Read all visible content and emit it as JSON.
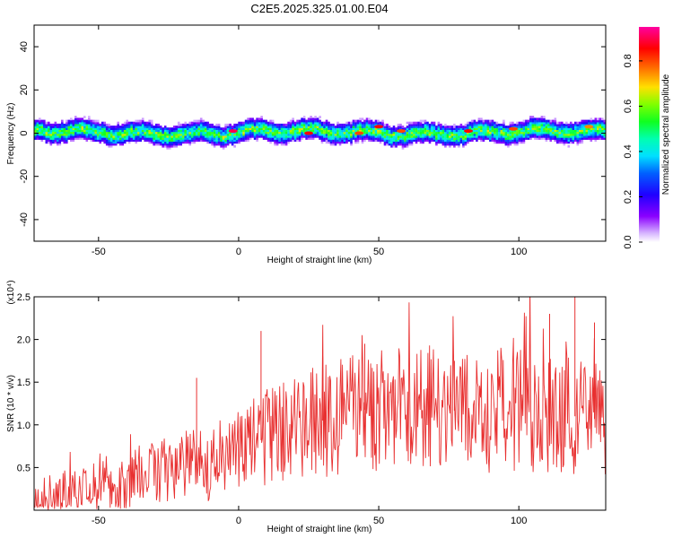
{
  "title": "C2E5.2025.325.01.00.E04",
  "chart_data": [
    {
      "type": "heatmap",
      "name": "spectrogram",
      "xlabel": "Height of straight line (km)",
      "ylabel": "Frequency (Hz)",
      "xlim": [
        -73,
        131
      ],
      "ylim": [
        -50,
        50
      ],
      "xticks": [
        -50,
        0,
        50,
        100
      ],
      "yticks": [
        -40,
        -20,
        0,
        20,
        40
      ],
      "band": {
        "center_hz": 0,
        "half_width_hz": 5,
        "description": "narrow band of high spectral amplitude centered near 0 Hz across the full height range"
      },
      "peak_points": [
        {
          "x": -2,
          "y": 1,
          "value": 0.9
        },
        {
          "x": 25,
          "y": 0,
          "value": 0.85
        },
        {
          "x": 43,
          "y": 0,
          "value": 0.8
        },
        {
          "x": 50,
          "y": 3,
          "value": 0.85
        },
        {
          "x": 58,
          "y": 1,
          "value": 0.8
        },
        {
          "x": 82,
          "y": 1,
          "value": 0.85
        },
        {
          "x": 98,
          "y": 2,
          "value": 0.8
        },
        {
          "x": 125,
          "y": 3,
          "value": 0.75
        }
      ],
      "colorbar": {
        "label": "Normalized spectral amplitude",
        "range": [
          0,
          0.95
        ],
        "ticks": [
          "0.0",
          "0.2",
          "0.4",
          "0.6",
          "0.8"
        ],
        "tick_values": [
          0.0,
          0.2,
          0.4,
          0.6,
          0.8
        ]
      }
    },
    {
      "type": "line",
      "name": "snr",
      "xlabel": "Height of straight line (km)",
      "ylabel": "SNR (10 * v/v)",
      "yscale_note": "(x10⁴)",
      "xlim": [
        -73,
        131
      ],
      "ylim": [
        0,
        2.5
      ],
      "xticks": [
        -50,
        0,
        50,
        100
      ],
      "yticks": [
        "0.5",
        "1.0",
        "1.5",
        "2.0",
        "2.5"
      ],
      "ytick_values": [
        0.5,
        1.0,
        1.5,
        2.0,
        2.5
      ],
      "color": "#e83030",
      "trend": {
        "x": [
          -73,
          -60,
          -50,
          -40,
          -30,
          -20,
          -10,
          0,
          10,
          20,
          30,
          40,
          50,
          60,
          70,
          80,
          90,
          100,
          110,
          120,
          131
        ],
        "y": [
          0.1,
          0.2,
          0.25,
          0.35,
          0.45,
          0.5,
          0.55,
          0.7,
          0.85,
          0.95,
          1.05,
          1.15,
          1.2,
          1.2,
          1.2,
          1.15,
          1.15,
          1.2,
          1.15,
          1.1,
          1.05
        ]
      },
      "spikes": [
        {
          "x": 8,
          "y": 2.1
        },
        {
          "x": 30,
          "y": 1.8
        },
        {
          "x": 45,
          "y": 1.95
        },
        {
          "x": 77,
          "y": 1.75
        },
        {
          "x": 111,
          "y": 2.3
        },
        {
          "x": 120,
          "y": 2.5
        },
        {
          "x": 127,
          "y": 2.2
        },
        {
          "x": -15,
          "y": 1.55
        }
      ]
    }
  ]
}
